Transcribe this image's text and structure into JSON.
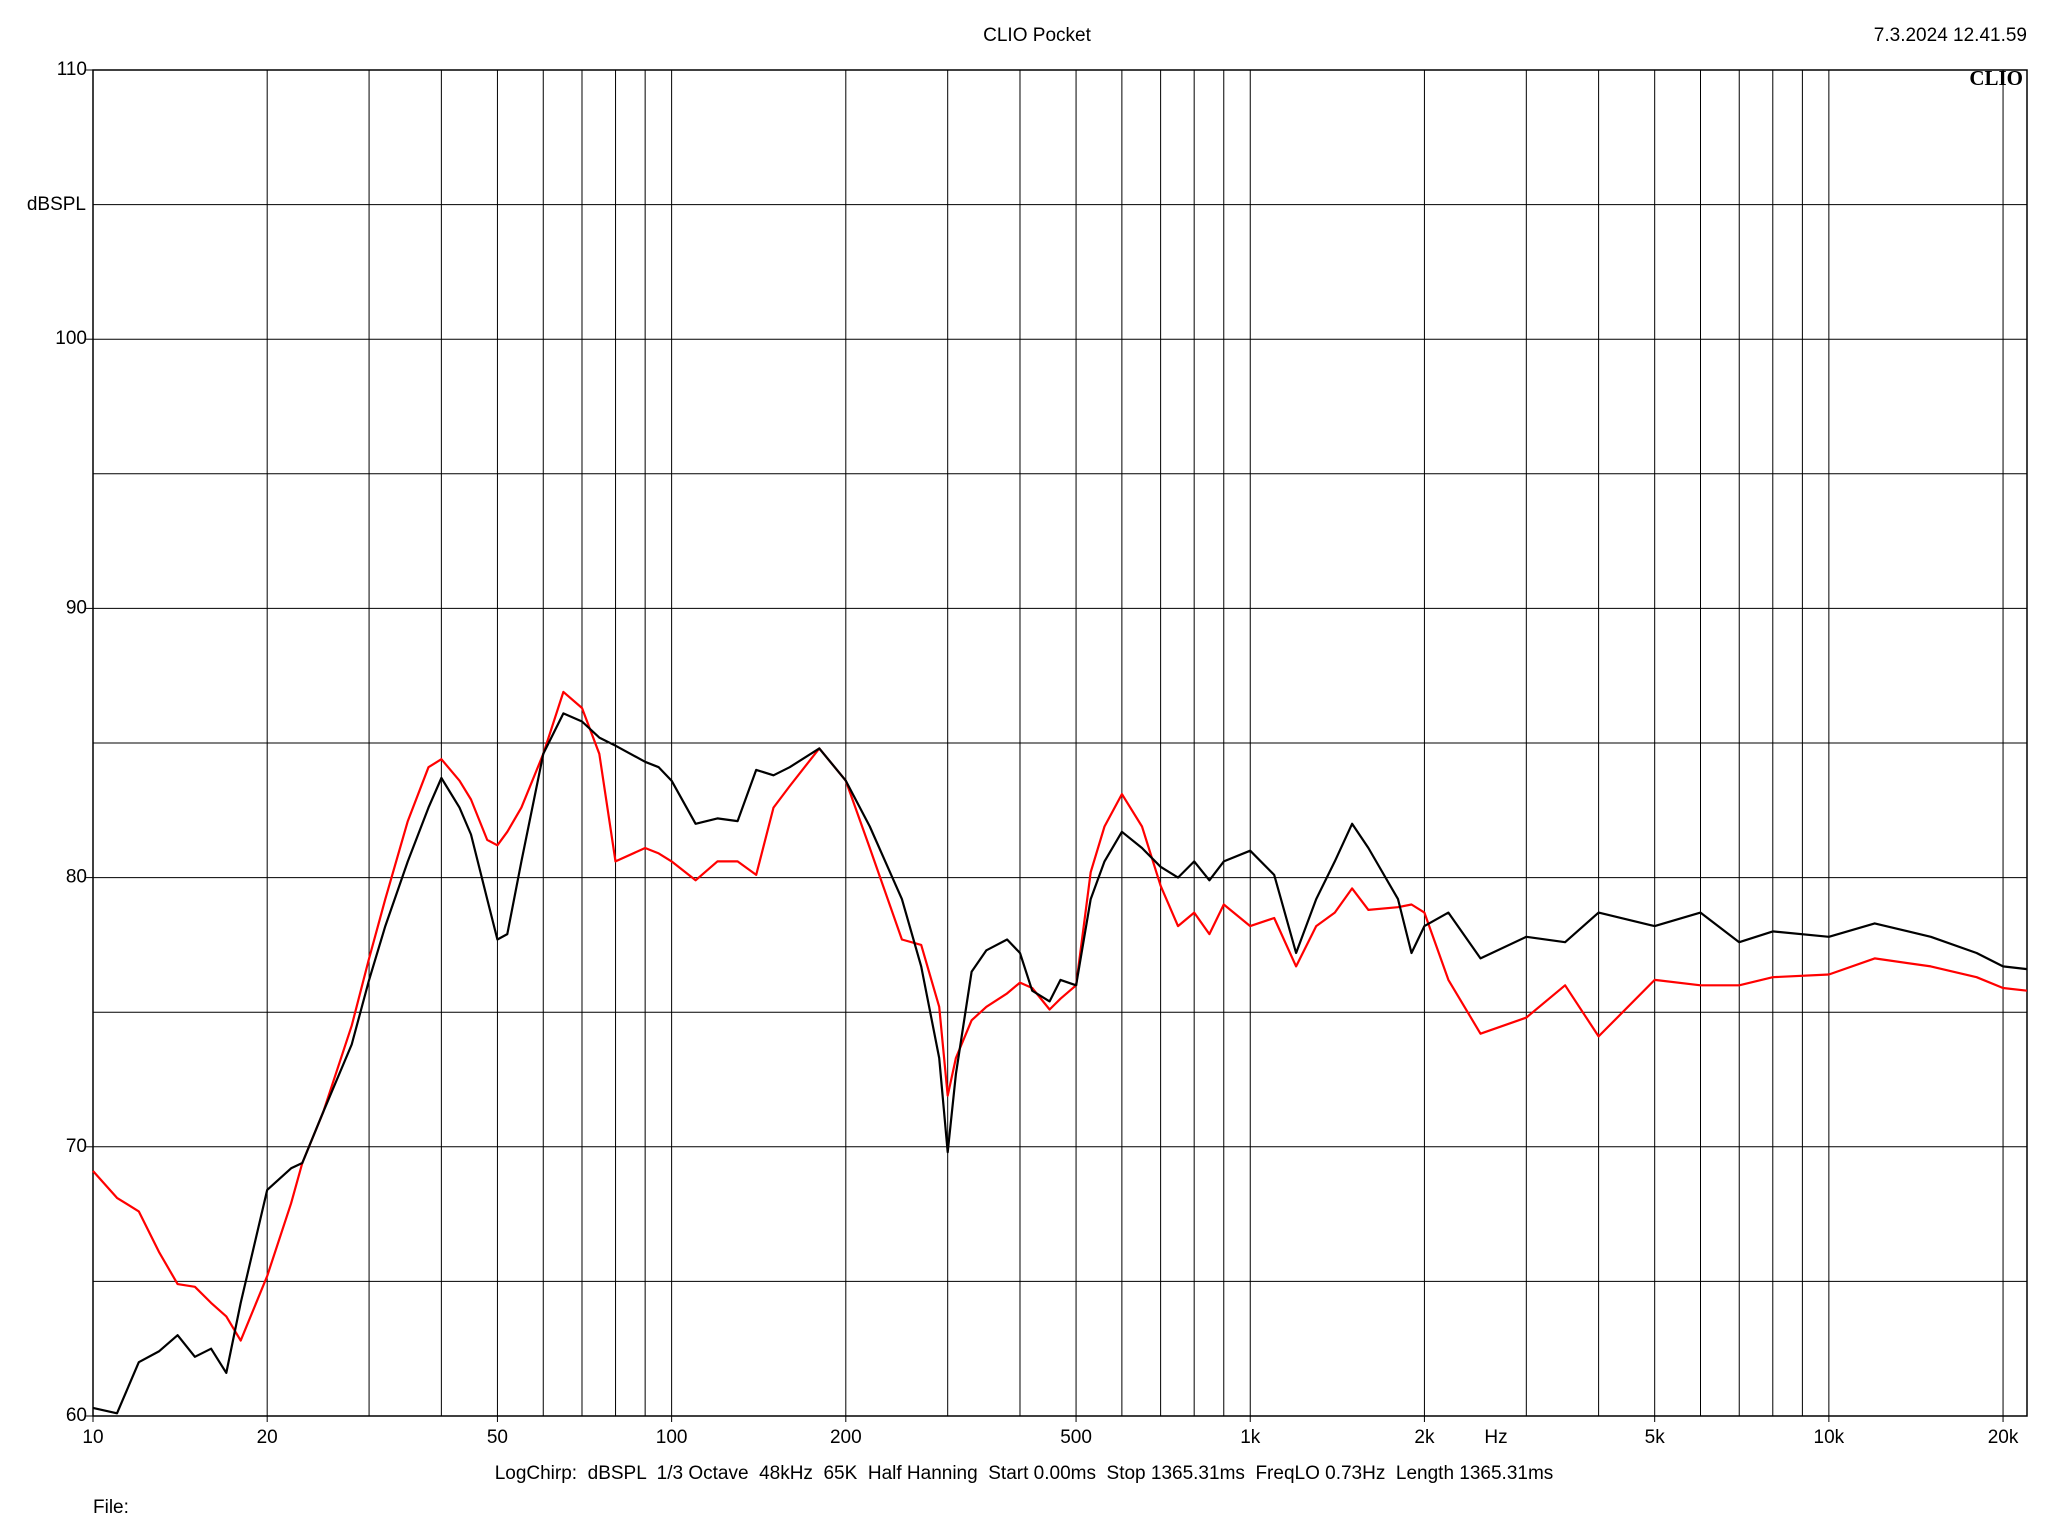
{
  "chart_data": {
    "type": "line",
    "title": "CLIO Pocket",
    "timestamp": "7.3.2024 12.41.59",
    "logo": "CLIO",
    "ylabel": "dBSPL",
    "xlabel": "Hz",
    "footer": "LogChirp:  dBSPL  1/3 Octave  48kHz  65K  Half Hanning  Start 0.00ms  Stop 1365.31ms  FreqLO 0.73Hz  Length 1365.31ms",
    "file_label": "File:",
    "xscale": "log",
    "xlim": [
      10,
      22000
    ],
    "ylim": [
      60,
      110
    ],
    "xticks": [
      10,
      20,
      50,
      100,
      200,
      500,
      {
        "value": 1000,
        "label": "1k"
      },
      {
        "value": 2000,
        "label": "2k"
      },
      {
        "value": 5000,
        "label": "5k"
      },
      {
        "value": 10000,
        "label": "10k"
      },
      {
        "value": 20000,
        "label": "20k"
      }
    ],
    "yticks": [
      60,
      70,
      80,
      90,
      100,
      110
    ],
    "xgrid": [
      10,
      20,
      30,
      40,
      50,
      60,
      70,
      80,
      90,
      100,
      200,
      300,
      400,
      500,
      600,
      700,
      800,
      900,
      1000,
      2000,
      3000,
      4000,
      5000,
      6000,
      7000,
      8000,
      9000,
      10000,
      20000
    ],
    "ygrid": [
      60,
      65,
      70,
      75,
      80,
      85,
      90,
      95,
      100,
      105,
      110
    ],
    "grid": true,
    "x": [
      10,
      11,
      12,
      13,
      14,
      15,
      16,
      17,
      18,
      20,
      22,
      23,
      25,
      28,
      30,
      32,
      35,
      38,
      40,
      43,
      45,
      48,
      50,
      52,
      55,
      60,
      65,
      70,
      75,
      80,
      90,
      95,
      100,
      110,
      120,
      130,
      140,
      150,
      160,
      180,
      200,
      220,
      250,
      270,
      290,
      300,
      310,
      330,
      350,
      380,
      400,
      420,
      450,
      470,
      500,
      530,
      560,
      600,
      650,
      700,
      750,
      800,
      850,
      900,
      1000,
      1100,
      1200,
      1300,
      1400,
      1500,
      1600,
      1800,
      1900,
      2000,
      2200,
      2500,
      3000,
      3500,
      4000,
      5000,
      6000,
      7000,
      8000,
      10000,
      12000,
      15000,
      18000,
      20000,
      22000
    ],
    "series": [
      {
        "color": "#000000",
        "values": [
          60.3,
          60.1,
          62.0,
          62.4,
          63.0,
          62.2,
          62.5,
          61.6,
          64.2,
          68.4,
          69.2,
          69.4,
          71.3,
          73.8,
          76.2,
          78.2,
          80.6,
          82.6,
          83.7,
          82.6,
          81.6,
          79.2,
          77.7,
          77.9,
          80.6,
          84.6,
          86.1,
          85.8,
          85.2,
          84.9,
          84.3,
          84.1,
          83.6,
          82.0,
          82.2,
          82.1,
          84.0,
          83.8,
          84.1,
          84.8,
          83.6,
          81.9,
          79.2,
          76.7,
          73.3,
          69.8,
          72.7,
          76.5,
          77.3,
          77.7,
          77.2,
          75.8,
          75.4,
          76.2,
          76.0,
          79.2,
          80.6,
          81.7,
          81.1,
          80.4,
          80.0,
          80.6,
          79.9,
          80.6,
          81.0,
          80.1,
          77.2,
          79.2,
          80.6,
          82.0,
          81.1,
          79.2,
          77.2,
          78.2,
          78.7,
          77.0,
          77.8,
          77.6,
          78.7,
          78.2,
          78.7,
          77.6,
          78.0,
          77.8,
          78.3,
          77.8,
          77.2,
          76.7,
          76.6
        ]
      },
      {
        "color": "#ff0000",
        "values": [
          69.1,
          68.1,
          67.6,
          66.1,
          64.9,
          64.8,
          64.2,
          63.7,
          62.8,
          65.2,
          67.9,
          69.4,
          71.3,
          74.5,
          77.0,
          79.2,
          82.1,
          84.1,
          84.4,
          83.6,
          82.9,
          81.4,
          81.2,
          81.7,
          82.6,
          84.6,
          86.9,
          86.3,
          84.6,
          80.6,
          81.1,
          80.9,
          80.6,
          79.9,
          80.6,
          80.6,
          80.1,
          82.6,
          83.4,
          84.8,
          83.6,
          81.1,
          77.7,
          77.5,
          75.2,
          71.9,
          73.3,
          74.7,
          75.2,
          75.7,
          76.1,
          75.9,
          75.1,
          75.5,
          76.0,
          80.2,
          81.9,
          83.1,
          81.9,
          79.7,
          78.2,
          78.7,
          77.9,
          79.0,
          78.2,
          78.5,
          76.7,
          78.2,
          78.7,
          79.6,
          78.8,
          78.9,
          79.0,
          78.7,
          76.2,
          74.2,
          74.8,
          76.0,
          74.1,
          76.2,
          76.0,
          76.0,
          76.3,
          76.4,
          77.0,
          76.7,
          76.3,
          75.9,
          75.8
        ]
      }
    ]
  }
}
